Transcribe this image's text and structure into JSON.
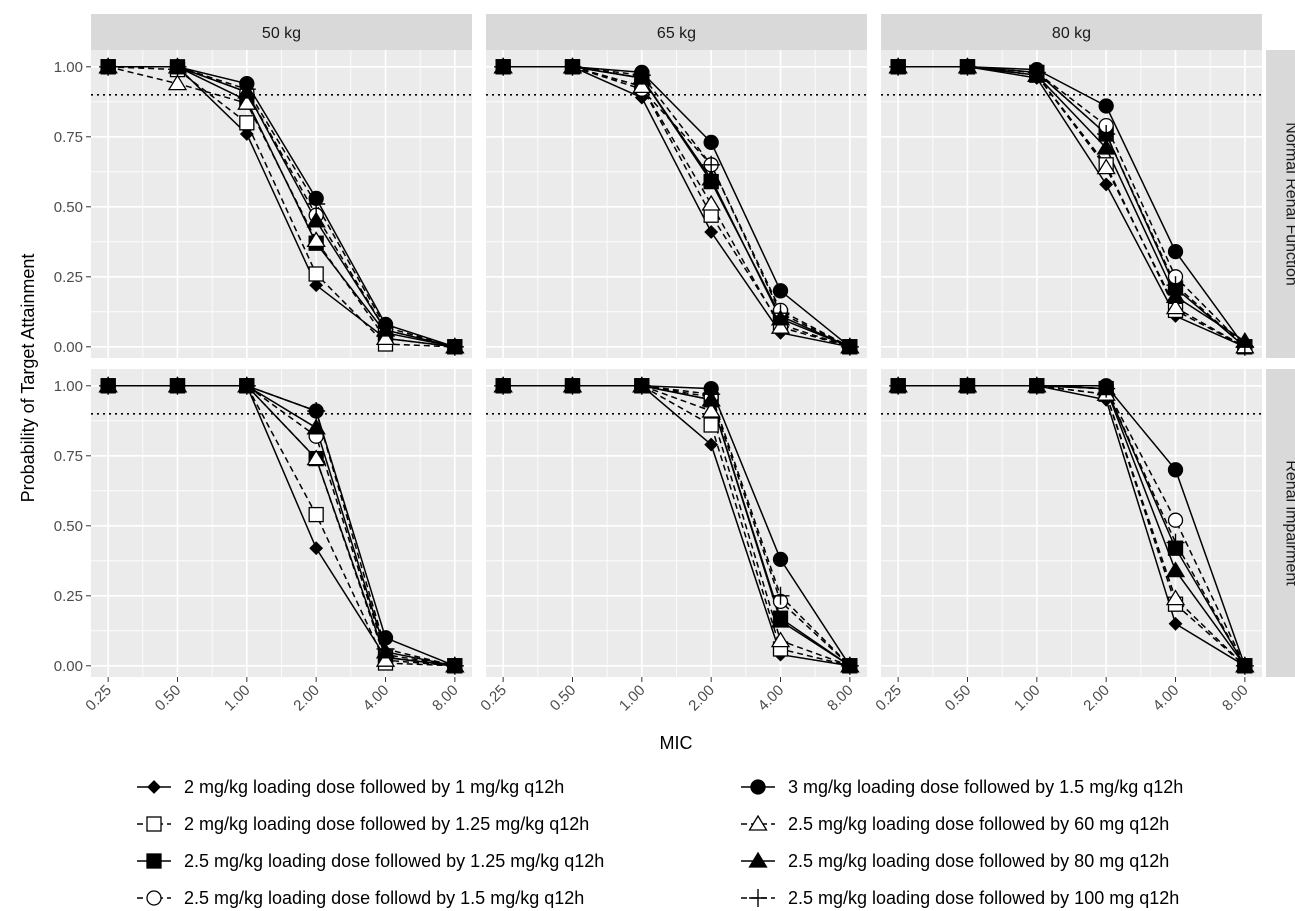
{
  "chart_data": {
    "type": "line",
    "xlabel": "MIC",
    "ylabel": "Probability of Target Attainment",
    "x_categories": [
      "0.25",
      "0.50",
      "1.00",
      "2.00",
      "4.00",
      "8.00"
    ],
    "y_ticks": [
      "0.00",
      "0.25",
      "0.50",
      "0.75",
      "1.00"
    ],
    "ylim": [
      -0.04,
      1.06
    ],
    "threshold": 0.9,
    "x_scale": "log2",
    "grid": true,
    "legend_position": "bottom",
    "columns": [
      "50 kg",
      "65 kg",
      "80 kg"
    ],
    "rows": [
      "Normal Renal Function",
      "Renal impairment"
    ],
    "series": [
      {
        "name": "2 mg/kg loading dose followed by 1 mg/kg q12h",
        "marker": "diamond-filled",
        "line": "solid"
      },
      {
        "name": "2 mg/kg loading dose followed by 1.25 mg/kg q12h",
        "marker": "square-open",
        "line": "dashed"
      },
      {
        "name": "2.5 mg/kg loading dose followed by 1.25 mg/kg q12h",
        "marker": "square-filled",
        "line": "solid"
      },
      {
        "name": "2.5 mg/kg loading dose followd by 1.5 mg/kg q12h",
        "marker": "circle-open",
        "line": "dashed"
      },
      {
        "name": "3 mg/kg loading dose followed by 1.5 mg/kg q12h",
        "marker": "circle-filled",
        "line": "solid"
      },
      {
        "name": "2.5 mg/kg loading dose followed by 60 mg q12h",
        "marker": "triangle-open",
        "line": "dashed"
      },
      {
        "name": "2.5 mg/kg loading dose followed by 80 mg q12h",
        "marker": "triangle-filled",
        "line": "solid"
      },
      {
        "name": "2.5 mg/kg loading dose followed by 100 mg q12h",
        "marker": "plus",
        "line": "dashed"
      }
    ],
    "panels": [
      {
        "column": "50 kg",
        "row": "Normal Renal Function",
        "values": [
          [
            1.0,
            1.0,
            0.76,
            0.22,
            0.03,
            0.0
          ],
          [
            1.0,
            0.99,
            0.8,
            0.26,
            0.01,
            0.0
          ],
          [
            1.0,
            1.0,
            0.88,
            0.37,
            0.05,
            0.0
          ],
          [
            1.0,
            1.0,
            0.91,
            0.47,
            0.06,
            0.0
          ],
          [
            1.0,
            1.0,
            0.94,
            0.53,
            0.08,
            0.0
          ],
          [
            1.0,
            0.94,
            0.87,
            0.38,
            0.03,
            0.0
          ],
          [
            1.0,
            1.0,
            0.91,
            0.45,
            0.06,
            0.0
          ],
          [
            1.0,
            1.0,
            0.92,
            0.51,
            0.07,
            0.0
          ]
        ]
      },
      {
        "column": "65 kg",
        "row": "Normal Renal Function",
        "values": [
          [
            1.0,
            1.0,
            0.89,
            0.41,
            0.05,
            0.0
          ],
          [
            1.0,
            1.0,
            0.93,
            0.47,
            0.08,
            0.0
          ],
          [
            1.0,
            1.0,
            0.96,
            0.59,
            0.11,
            0.0
          ],
          [
            1.0,
            1.0,
            0.92,
            0.65,
            0.13,
            0.0
          ],
          [
            1.0,
            1.0,
            0.98,
            0.73,
            0.2,
            0.0
          ],
          [
            1.0,
            1.0,
            0.93,
            0.51,
            0.07,
            0.0
          ],
          [
            1.0,
            1.0,
            0.96,
            0.6,
            0.1,
            0.0
          ],
          [
            1.0,
            1.0,
            0.97,
            0.65,
            0.12,
            0.0
          ]
        ]
      },
      {
        "column": "80 kg",
        "row": "Normal Renal Function",
        "values": [
          [
            1.0,
            1.0,
            0.96,
            0.58,
            0.11,
            0.0
          ],
          [
            1.0,
            1.0,
            0.97,
            0.65,
            0.13,
            0.0
          ],
          [
            1.0,
            1.0,
            0.98,
            0.76,
            0.21,
            0.0
          ],
          [
            1.0,
            1.0,
            0.98,
            0.79,
            0.25,
            0.0
          ],
          [
            1.0,
            1.0,
            0.99,
            0.86,
            0.34,
            0.0
          ],
          [
            1.0,
            1.0,
            0.97,
            0.64,
            0.14,
            0.0
          ],
          [
            1.0,
            1.0,
            0.97,
            0.71,
            0.18,
            0.02
          ],
          [
            1.0,
            1.0,
            0.98,
            0.76,
            0.22,
            0.0
          ]
        ]
      },
      {
        "column": "50 kg",
        "row": "Renal impairment",
        "values": [
          [
            1.0,
            1.0,
            1.0,
            0.42,
            0.03,
            0.0
          ],
          [
            1.0,
            1.0,
            1.0,
            0.54,
            0.01,
            0.0
          ],
          [
            1.0,
            1.0,
            1.0,
            0.74,
            0.03,
            0.0
          ],
          [
            1.0,
            1.0,
            1.0,
            0.82,
            0.04,
            0.0
          ],
          [
            1.0,
            1.0,
            1.0,
            0.91,
            0.1,
            0.0
          ],
          [
            1.0,
            1.0,
            1.0,
            0.74,
            0.02,
            0.0
          ],
          [
            1.0,
            1.0,
            1.0,
            0.85,
            0.05,
            0.0
          ],
          [
            1.0,
            1.0,
            1.0,
            0.91,
            0.06,
            0.0
          ]
        ]
      },
      {
        "column": "65 kg",
        "row": "Renal impairment",
        "values": [
          [
            1.0,
            1.0,
            1.0,
            0.79,
            0.04,
            0.0
          ],
          [
            1.0,
            1.0,
            1.0,
            0.86,
            0.06,
            0.0
          ],
          [
            1.0,
            1.0,
            1.0,
            0.95,
            0.17,
            0.0
          ],
          [
            1.0,
            1.0,
            1.0,
            0.96,
            0.23,
            0.0
          ],
          [
            1.0,
            1.0,
            1.0,
            0.99,
            0.38,
            0.0
          ],
          [
            1.0,
            1.0,
            1.0,
            0.91,
            0.09,
            0.0
          ],
          [
            1.0,
            1.0,
            1.0,
            0.95,
            0.16,
            0.0
          ],
          [
            1.0,
            1.0,
            1.0,
            0.97,
            0.25,
            0.0
          ]
        ]
      },
      {
        "column": "80 kg",
        "row": "Renal impairment",
        "values": [
          [
            1.0,
            1.0,
            1.0,
            0.95,
            0.15,
            0.0
          ],
          [
            1.0,
            1.0,
            1.0,
            0.97,
            0.22,
            0.0
          ],
          [
            1.0,
            1.0,
            1.0,
            0.99,
            0.42,
            0.0
          ],
          [
            1.0,
            1.0,
            1.0,
            0.99,
            0.52,
            0.0
          ],
          [
            1.0,
            1.0,
            1.0,
            1.0,
            0.7,
            0.0
          ],
          [
            1.0,
            1.0,
            1.0,
            0.97,
            0.24,
            0.0
          ],
          [
            1.0,
            1.0,
            1.0,
            0.99,
            0.34,
            0.0
          ],
          [
            1.0,
            1.0,
            1.0,
            0.99,
            0.44,
            0.0
          ]
        ]
      }
    ]
  }
}
